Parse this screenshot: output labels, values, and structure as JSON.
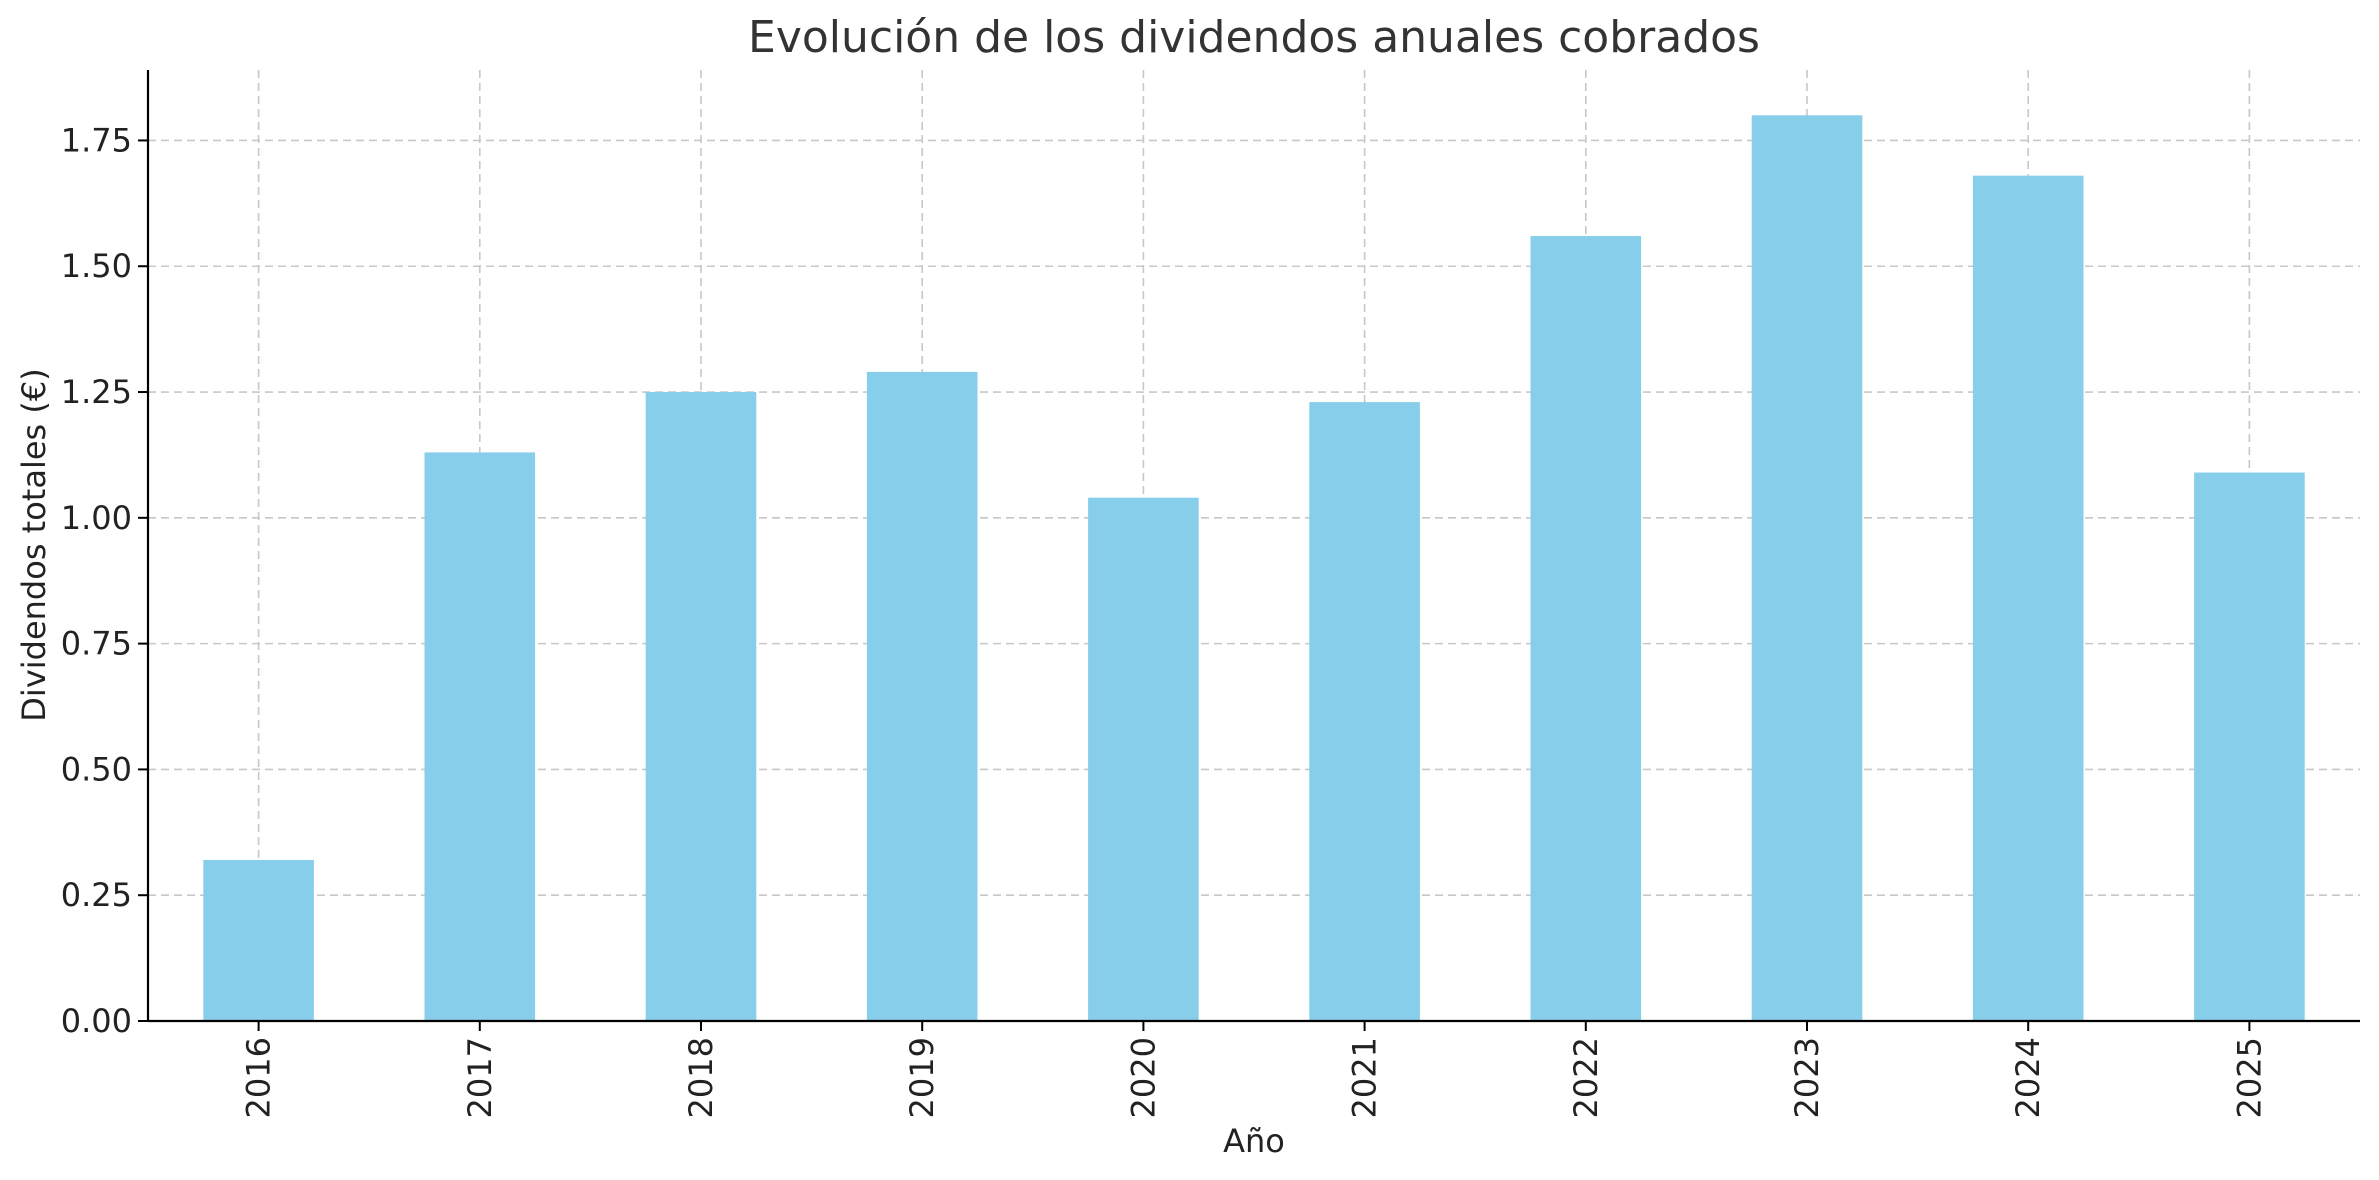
{
  "chart_data": {
    "type": "bar",
    "title": "Evolución de los dividendos anuales cobrados",
    "xlabel": "Año",
    "ylabel": "Dividendos totales (€)",
    "categories": [
      "2016",
      "2017",
      "2018",
      "2019",
      "2020",
      "2021",
      "2022",
      "2023",
      "2024",
      "2025"
    ],
    "values": [
      0.32,
      1.13,
      1.25,
      1.29,
      1.04,
      1.23,
      1.56,
      1.8,
      1.68,
      1.09
    ],
    "ylim": [
      0,
      1.89
    ],
    "yticks": [
      0.0,
      0.25,
      0.5,
      0.75,
      1.0,
      1.25,
      1.5,
      1.75
    ],
    "ytick_labels": [
      "0.00",
      "0.25",
      "0.50",
      "0.75",
      "1.00",
      "1.25",
      "1.50",
      "1.75"
    ],
    "grid": true,
    "grid_style": "dashed",
    "bar_color": "#87CEEB",
    "grid_color": "#c8c8c8",
    "axis_color": "#000000",
    "xtick_rotation": "vertical"
  }
}
